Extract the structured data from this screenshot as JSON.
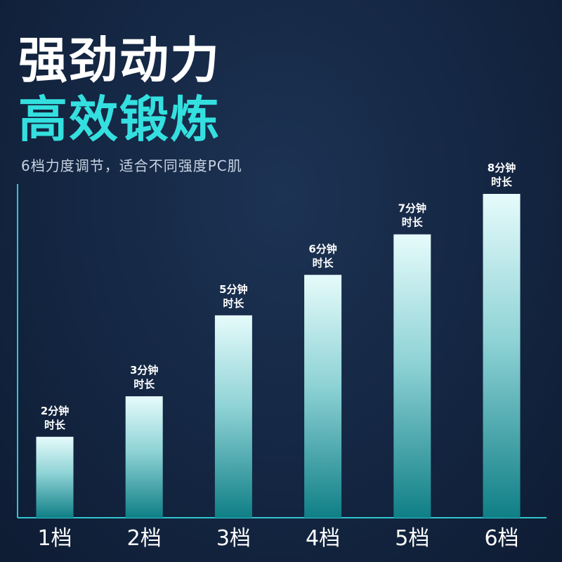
{
  "header": {
    "title_line1": "强劲动力",
    "title_line2": "高效锻炼",
    "subtitle": "6档力度调节，适合不同强度PC肌"
  },
  "colors": {
    "background": "#152845",
    "accent": "#34e0df",
    "bar_top": "#e6fbfb",
    "bar_bottom": "#0f7f86",
    "axis": "#2fc6cf"
  },
  "chart_data": {
    "type": "bar",
    "categories": [
      "1档",
      "2档",
      "3档",
      "4档",
      "5档",
      "6档"
    ],
    "values": [
      2,
      3,
      5,
      6,
      7,
      8
    ],
    "data_labels": [
      [
        "2分钟",
        "时长"
      ],
      [
        "3分钟",
        "时长"
      ],
      [
        "5分钟",
        "时长"
      ],
      [
        "6分钟",
        "时长"
      ],
      [
        "7分钟",
        "时长"
      ],
      [
        "8分钟",
        "时长"
      ]
    ],
    "title": "",
    "xlabel": "",
    "ylabel": "",
    "grid": false,
    "legend": "none"
  }
}
